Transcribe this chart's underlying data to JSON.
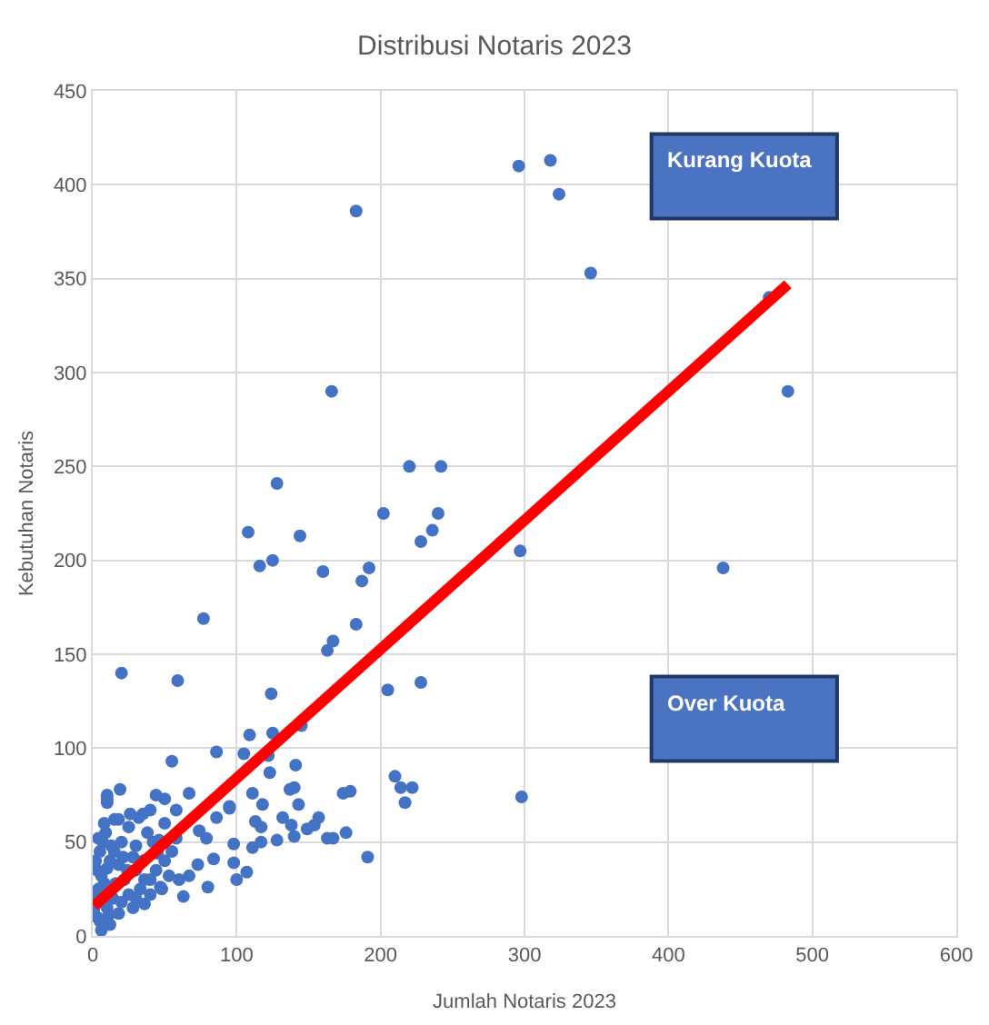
{
  "chart_data": {
    "type": "scatter",
    "title": "Distribusi Notaris 2023",
    "xlabel": "Jumlah Notaris 2023",
    "ylabel": "Kebutuhan Notaris",
    "xlim": [
      0,
      600
    ],
    "xticks": [
      0,
      100,
      200,
      300,
      400,
      500,
      600
    ],
    "ylim": [
      0,
      450
    ],
    "yticks": [
      0,
      50,
      100,
      150,
      200,
      250,
      300,
      350,
      400,
      450
    ],
    "grid": true,
    "annotations": [
      "Kurang Kuota",
      "Over Kuota"
    ],
    "series": [
      {
        "color": "#4472c4",
        "marker": "circle",
        "x": [
          296,
          318,
          324,
          346,
          183,
          166,
          483,
          470,
          220,
          242,
          128,
          202,
          240,
          108,
          144,
          236,
          228,
          116,
          125,
          160,
          192,
          187,
          297,
          77,
          183,
          167,
          163,
          20,
          59,
          124,
          205,
          228,
          438,
          298,
          210,
          214,
          222,
          217,
          191,
          109,
          125,
          145,
          86,
          55,
          105,
          122,
          141,
          123,
          19,
          10,
          10,
          50,
          67,
          95,
          111,
          118,
          137,
          140,
          143,
          174,
          179,
          58,
          95,
          86,
          113,
          132,
          138,
          117,
          157,
          154,
          149,
          163,
          167,
          176,
          128,
          140,
          117,
          111,
          98,
          84,
          74,
          79,
          98,
          100,
          107,
          80,
          63,
          47,
          36,
          73,
          67,
          53,
          46,
          50,
          58,
          40,
          44,
          32,
          3,
          1,
          2,
          4,
          3,
          5,
          8,
          10,
          12,
          5,
          7,
          9,
          15,
          18,
          20,
          22,
          25,
          28,
          30,
          14,
          16,
          18,
          12,
          25,
          30,
          35,
          38,
          33,
          40,
          45,
          6,
          10,
          20,
          8,
          15,
          10,
          13,
          26,
          35,
          44,
          50,
          55,
          60,
          48,
          28,
          2,
          4,
          6,
          11,
          18,
          21,
          24,
          30,
          36,
          40,
          42
        ],
        "values": [
          410,
          413,
          395,
          353,
          386,
          290,
          290,
          340,
          250,
          250,
          241,
          225,
          225,
          215,
          213,
          216,
          210,
          197,
          200,
          194,
          196,
          189,
          205,
          169,
          166,
          157,
          152,
          140,
          136,
          129,
          131,
          135,
          196,
          74,
          85,
          79,
          79,
          71,
          42,
          107,
          108,
          112,
          98,
          93,
          97,
          96,
          91,
          87,
          78,
          75,
          71,
          73,
          76,
          69,
          76,
          70,
          78,
          79,
          70,
          76,
          77,
          67,
          68,
          63,
          61,
          63,
          59,
          58,
          63,
          59,
          57,
          52,
          52,
          55,
          51,
          53,
          50,
          47,
          49,
          41,
          56,
          52,
          39,
          30,
          34,
          26,
          21,
          26,
          17,
          38,
          32,
          32,
          51,
          60,
          52,
          67,
          75,
          63,
          10,
          15,
          20,
          25,
          35,
          8,
          28,
          36,
          40,
          45,
          50,
          55,
          45,
          38,
          50,
          30,
          58,
          42,
          48,
          20,
          28,
          12,
          6,
          22,
          35,
          40,
          55,
          25,
          30,
          44,
          3,
          15,
          18,
          60,
          62,
          73,
          48,
          65,
          65,
          35,
          40,
          45,
          30,
          25,
          15,
          40,
          52,
          32,
          11,
          62,
          42,
          35,
          20,
          30,
          22,
          50
        ]
      },
      {
        "type": "line",
        "color": "#ff0000",
        "line_style": "solid",
        "x": [
          1,
          483
        ],
        "values": [
          16,
          347
        ]
      }
    ]
  }
}
